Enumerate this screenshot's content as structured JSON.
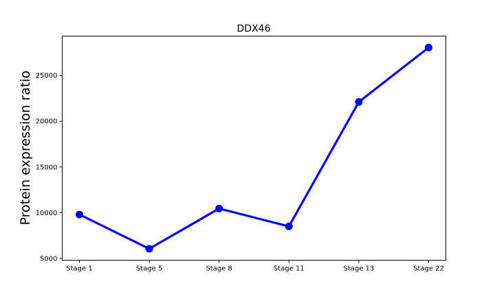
{
  "chart_data": {
    "type": "line",
    "title": "DDX46",
    "xlabel": "",
    "ylabel": "Protein expression ratio",
    "categories": [
      "Stage 1",
      "Stage 5",
      "Stage 8",
      "Stage 11",
      "Stage 13",
      "Stage 22"
    ],
    "series": [
      {
        "values": [
          9800,
          6050,
          10450,
          8500,
          22100,
          28050
        ],
        "color": "#0000ff"
      }
    ],
    "ylim": [
      4800,
      29300
    ],
    "yticks": [
      5000,
      10000,
      15000,
      20000,
      25000
    ],
    "grid": false,
    "legend": "none"
  }
}
